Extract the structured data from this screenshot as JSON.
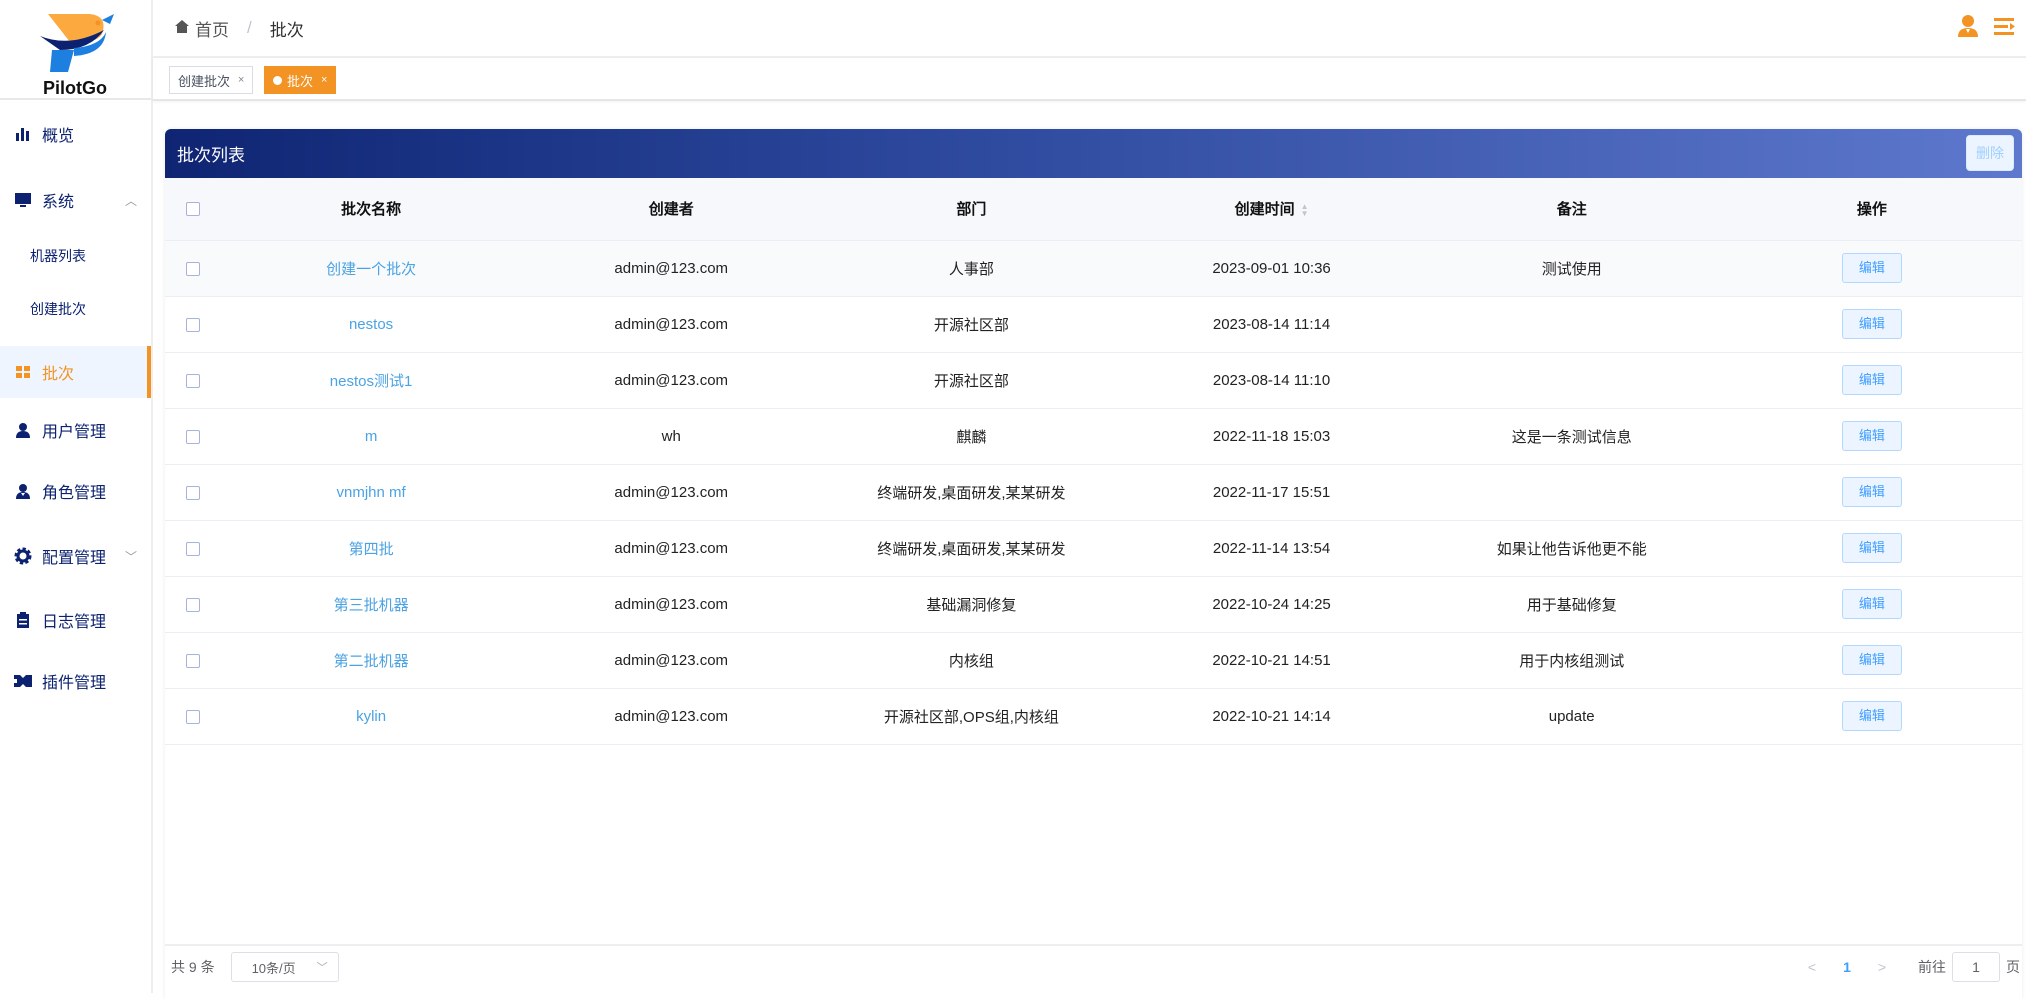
{
  "brand": {
    "name": "PilotGo",
    "accent": "#f29324",
    "nav_color": "#0c2270"
  },
  "sidebar": {
    "items": [
      {
        "label": "概览",
        "icon": "bar-chart-icon"
      },
      {
        "label": "系统",
        "icon": "monitor-icon",
        "expanded": true
      },
      {
        "label": "机器列表"
      },
      {
        "label": "创建批次"
      },
      {
        "label": "批次",
        "icon": "grid-icon",
        "active": true
      },
      {
        "label": "用户管理",
        "icon": "user-icon"
      },
      {
        "label": "角色管理",
        "icon": "role-icon"
      },
      {
        "label": "配置管理",
        "icon": "gear-icon",
        "expanded": false
      },
      {
        "label": "日志管理",
        "icon": "clipboard-icon"
      },
      {
        "label": "插件管理",
        "icon": "plugin-icon"
      }
    ]
  },
  "breadcrumb": {
    "home": "首页",
    "current": "批次"
  },
  "tabs": [
    {
      "label": "创建批次"
    },
    {
      "label": "批次",
      "active": true
    }
  ],
  "card": {
    "title": "批次列表",
    "delete_label": "删除"
  },
  "table": {
    "headers": [
      "批次名称",
      "创建者",
      "部门",
      "创建时间",
      "备注",
      "操作"
    ],
    "edit_label": "编辑",
    "rows": [
      {
        "name": "创建一个批次",
        "creator": "admin@123.com",
        "dept": "人事部",
        "time": "2023-09-01 10:36",
        "remark": "测试使用"
      },
      {
        "name": "nestos",
        "creator": "admin@123.com",
        "dept": "开源社区部",
        "time": "2023-08-14 11:14",
        "remark": ""
      },
      {
        "name": "nestos测试1",
        "creator": "admin@123.com",
        "dept": "开源社区部",
        "time": "2023-08-14 11:10",
        "remark": ""
      },
      {
        "name": "m",
        "creator": "wh",
        "dept": "麒麟",
        "time": "2022-11-18 15:03",
        "remark": "这是一条测试信息"
      },
      {
        "name": "vnmjhn mf",
        "creator": "admin@123.com",
        "dept": "终端研发,桌面研发,某某研发",
        "time": "2022-11-17 15:51",
        "remark": ""
      },
      {
        "name": "第四批",
        "creator": "admin@123.com",
        "dept": "终端研发,桌面研发,某某研发",
        "time": "2022-11-14 13:54",
        "remark": "如果让他告诉他更不能"
      },
      {
        "name": "第三批机器",
        "creator": "admin@123.com",
        "dept": "基础漏洞修复",
        "time": "2022-10-24 14:25",
        "remark": "用于基础修复"
      },
      {
        "name": "第二批机器",
        "creator": "admin@123.com",
        "dept": "内核组",
        "time": "2022-10-21 14:51",
        "remark": "用于内核组测试"
      },
      {
        "name": "kylin",
        "creator": "admin@123.com",
        "dept": "开源社区部,OPS组,内核组",
        "time": "2022-10-21 14:14",
        "remark": "update"
      }
    ]
  },
  "pagination": {
    "total": "共 9 条",
    "page_size": "10条/页",
    "current_page": "1",
    "goto_label": "前往",
    "goto_value": "1",
    "page_suffix": "页"
  }
}
